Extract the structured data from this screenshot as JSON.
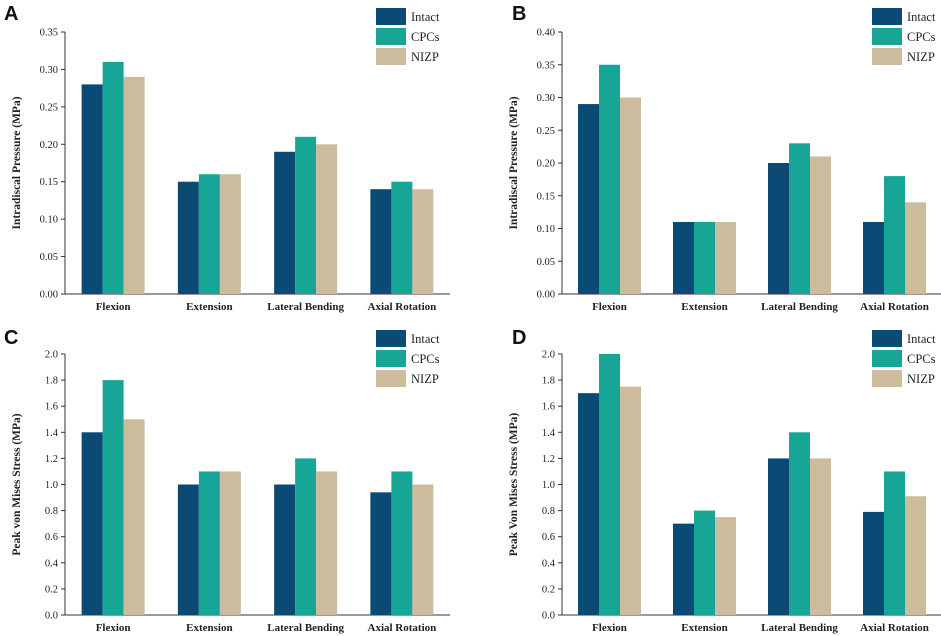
{
  "colors": {
    "intact": "#0b4a74",
    "cpcs": "#17a596",
    "nizp": "#cdbb9d",
    "axis": "#333333"
  },
  "chart_data": [
    {
      "type": "bar",
      "panel": "A",
      "categories": [
        "Flexion",
        "Extension",
        "Lateral Bending",
        "Axial Rotation"
      ],
      "series": [
        {
          "name": "Intact",
          "values": [
            0.28,
            0.15,
            0.19,
            0.14
          ]
        },
        {
          "name": "CPCs",
          "values": [
            0.31,
            0.16,
            0.21,
            0.15
          ]
        },
        {
          "name": "NIZP",
          "values": [
            0.29,
            0.16,
            0.2,
            0.14
          ]
        }
      ],
      "ylabel": "Intradiscal Pressure (MPa)",
      "ylim": [
        0,
        0.35
      ],
      "yticks": [
        "0.00",
        "0.05",
        "0.10",
        "0.15",
        "0.20",
        "0.25",
        "0.30",
        "0.35"
      ],
      "legend": "top-right"
    },
    {
      "type": "bar",
      "panel": "B",
      "categories": [
        "Flexion",
        "Extension",
        "Lateral Bending",
        "Axial Rotation"
      ],
      "series": [
        {
          "name": "Intact",
          "values": [
            0.29,
            0.11,
            0.2,
            0.11
          ]
        },
        {
          "name": "CPCs",
          "values": [
            0.35,
            0.11,
            0.23,
            0.18
          ]
        },
        {
          "name": "NIZP",
          "values": [
            0.3,
            0.11,
            0.21,
            0.14
          ]
        }
      ],
      "ylabel": "Intradiscal Pressure (MPa)",
      "ylim": [
        0,
        0.4
      ],
      "yticks": [
        "0.00",
        "0.05",
        "0.10",
        "0.15",
        "0.20",
        "0.25",
        "0.30",
        "0.35",
        "0.40"
      ],
      "legend": "top-right"
    },
    {
      "type": "bar",
      "panel": "C",
      "categories": [
        "Flexion",
        "Extension",
        "Lateral Bending",
        "Axial Rotation"
      ],
      "series": [
        {
          "name": "Intact",
          "values": [
            1.4,
            1.0,
            1.0,
            0.94
          ]
        },
        {
          "name": "CPCs",
          "values": [
            1.8,
            1.1,
            1.2,
            1.1
          ]
        },
        {
          "name": "NIZP",
          "values": [
            1.5,
            1.1,
            1.1,
            1.0
          ]
        }
      ],
      "ylabel": "Peak von Mises Stress (MPa)",
      "ylim": [
        0,
        2.0
      ],
      "yticks": [
        "0.0",
        "0.2",
        "0.4",
        "0.6",
        "0.8",
        "1.0",
        "1.2",
        "1.4",
        "1.6",
        "1.8",
        "2.0"
      ],
      "legend": "top-right"
    },
    {
      "type": "bar",
      "panel": "D",
      "categories": [
        "Flexion",
        "Extension",
        "Lateral Bending",
        "Axial Rotation"
      ],
      "series": [
        {
          "name": "Intact",
          "values": [
            1.7,
            0.7,
            1.2,
            0.79
          ]
        },
        {
          "name": "CPCs",
          "values": [
            2.0,
            0.8,
            1.4,
            1.1
          ]
        },
        {
          "name": "NIZP",
          "values": [
            1.75,
            0.75,
            1.2,
            0.91
          ]
        }
      ],
      "ylabel": "Peak Von Mises Stress (MPa)",
      "ylim": [
        0,
        2.0
      ],
      "yticks": [
        "0.0",
        "0.2",
        "0.4",
        "0.6",
        "0.8",
        "1.0",
        "1.2",
        "1.4",
        "1.6",
        "1.8",
        "2.0"
      ],
      "legend": "top-right"
    }
  ]
}
